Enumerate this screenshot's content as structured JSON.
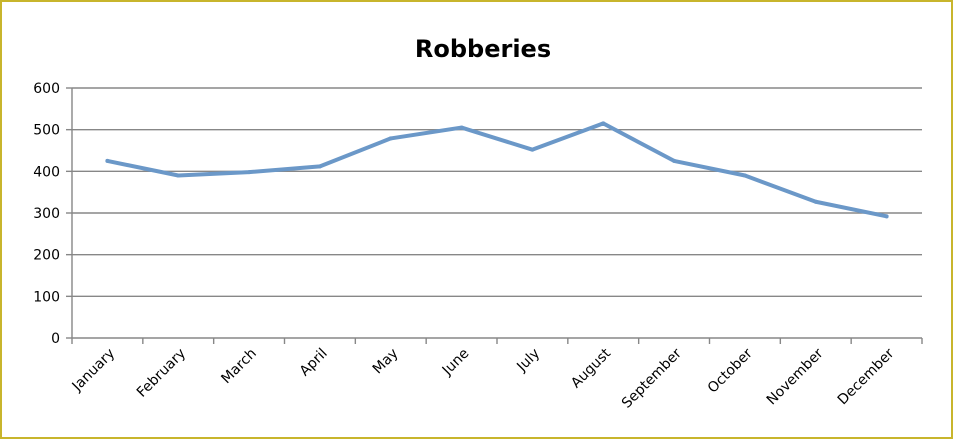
{
  "chart_data": {
    "type": "line",
    "title": "Robberies",
    "xlabel": "",
    "ylabel": "",
    "categories": [
      "January",
      "February",
      "March",
      "April",
      "May",
      "June",
      "July",
      "August",
      "September",
      "October",
      "November",
      "December"
    ],
    "series": [
      {
        "values": [
          425,
          390,
          398,
          412,
          479,
          505,
          452,
          515,
          425,
          390,
          327,
          292
        ]
      }
    ],
    "ylim": [
      0,
      600
    ],
    "yticks": [
      0,
      100,
      200,
      300,
      400,
      500,
      600
    ],
    "grid": true,
    "legend": "none",
    "colors": {
      "series": "#6b98c8",
      "border": "#c8b52c",
      "grid": "#878787"
    }
  }
}
